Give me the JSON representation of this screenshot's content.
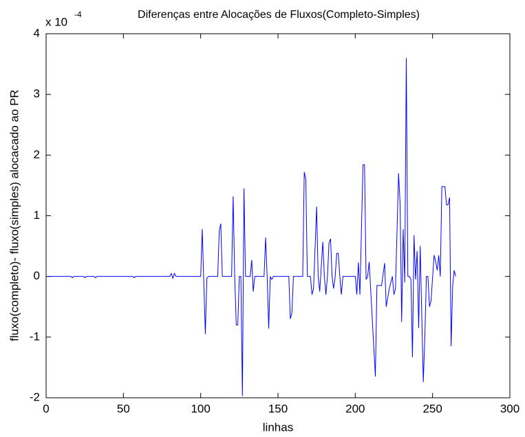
{
  "chart_data": {
    "type": "line",
    "title": "Diferenças entre Alocações de Fluxos(Completo-Simples)",
    "xlabel": "linhas",
    "ylabel": "fluxo(completo)- fluxo(simples) alocacado ao PR",
    "y_multiplier": {
      "base": "x 10",
      "exponent": "-4"
    },
    "color": "#0000ff",
    "xlim": [
      0,
      300
    ],
    "xticks": [
      0,
      50,
      100,
      150,
      200,
      250,
      300
    ],
    "ylim": [
      -2,
      4
    ],
    "yticks": [
      -2,
      -1,
      0,
      1,
      2,
      3,
      4
    ],
    "grid": false,
    "x": [
      1,
      16,
      17,
      18,
      24,
      25,
      26,
      31,
      32,
      33,
      56,
      57,
      58,
      80,
      81,
      82,
      83,
      84,
      100,
      101,
      103,
      104,
      105,
      111,
      112,
      113,
      114,
      120,
      121,
      122,
      123,
      124,
      125,
      126,
      127,
      128,
      129,
      132,
      133,
      134,
      135,
      141,
      142,
      143,
      144,
      145,
      146,
      147,
      157,
      158,
      159,
      160,
      166,
      167,
      168,
      169,
      171,
      172,
      173,
      175,
      176,
      177,
      179,
      180,
      181,
      182,
      183,
      184,
      185,
      186,
      187,
      188,
      189,
      190,
      191,
      192,
      200,
      201,
      202,
      203,
      205,
      206,
      207,
      208,
      209,
      213,
      214,
      217,
      219,
      220,
      222,
      224,
      225,
      226,
      228,
      229,
      230,
      231,
      232,
      233,
      234,
      235,
      236,
      237,
      238,
      239,
      240,
      241,
      242,
      244,
      245,
      246,
      247,
      248,
      249,
      251,
      252,
      253,
      254,
      255,
      256,
      258,
      259,
      260,
      261,
      262,
      263,
      264,
      265
    ],
    "values": [
      0,
      0,
      -0.02,
      0,
      0,
      -0.02,
      0,
      0,
      -0.02,
      0,
      0,
      -0.02,
      0,
      0,
      0.05,
      -0.03,
      0.05,
      0,
      0,
      0.78,
      -0.95,
      -0.03,
      0,
      0,
      0.75,
      0.87,
      0,
      0,
      1.32,
      0,
      -0.8,
      -0.8,
      0,
      0,
      -1.97,
      1.45,
      0,
      0,
      0.27,
      -0.25,
      0,
      0,
      0.64,
      0,
      -0.86,
      0,
      -0.05,
      0,
      0,
      -0.7,
      -0.6,
      0,
      0,
      1.72,
      1.6,
      0,
      0,
      -0.3,
      -0.2,
      1.15,
      0,
      -0.25,
      0.57,
      0,
      -0.3,
      0,
      0.55,
      0.62,
      0,
      -0.2,
      0,
      0.38,
      0.38,
      0,
      -0.3,
      0,
      0,
      -0.3,
      0.23,
      -0.3,
      1.84,
      1.84,
      -0.05,
      0,
      0.24,
      -1.65,
      -0.15,
      -0.15,
      0.22,
      -0.5,
      -0.2,
      0,
      -0.3,
      -0.2,
      1.7,
      1.2,
      -0.75,
      0.78,
      -0.1,
      3.6,
      0,
      0,
      -0.05,
      -1.33,
      0.68,
      -0.05,
      0.42,
      -0.85,
      0.5,
      -1.74,
      -1,
      0,
      0,
      -0.5,
      -0.4,
      0.35,
      0.25,
      0.1,
      0.35,
      0,
      1.48,
      1.48,
      1.18,
      1.18,
      1.3,
      -1.15,
      -0.15,
      0.1,
      0
    ]
  }
}
